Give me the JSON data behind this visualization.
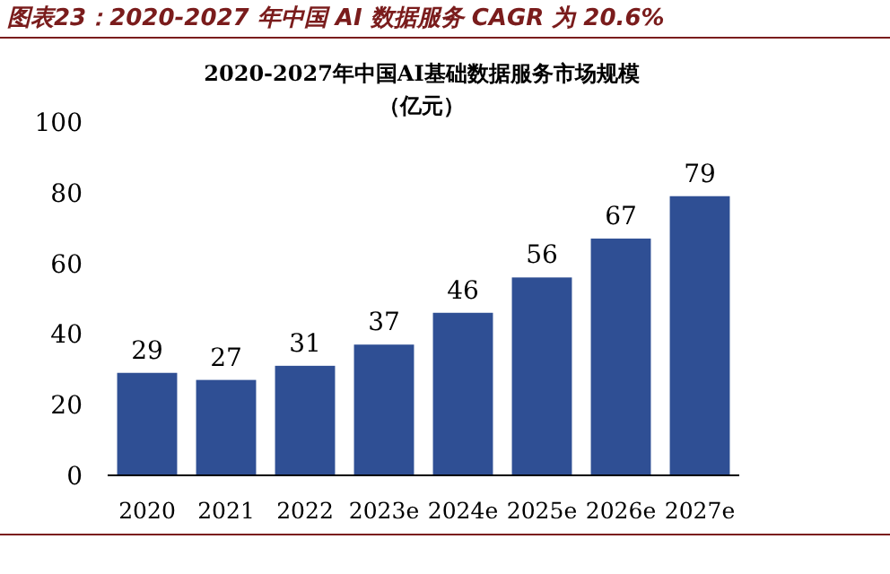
{
  "chart_data": {
    "type": "bar",
    "title": "图表23：2020-2027 年中国 AI 数据服务 CAGR 为 20.6%",
    "subtitle": "2020-2027年中国AI基础数据服务市场规模",
    "annotations": [
      "（亿元）"
    ],
    "categories": [
      "2020",
      "2021",
      "2022",
      "2023e",
      "2024e",
      "2025e",
      "2026e",
      "2027e"
    ],
    "values": [
      29,
      27,
      31,
      37,
      46,
      56,
      67,
      79
    ],
    "color": "#2f4f94",
    "ylim": [
      0,
      100
    ],
    "yticks": [
      0,
      20,
      40,
      60,
      80,
      100
    ],
    "data_labels": true
  }
}
